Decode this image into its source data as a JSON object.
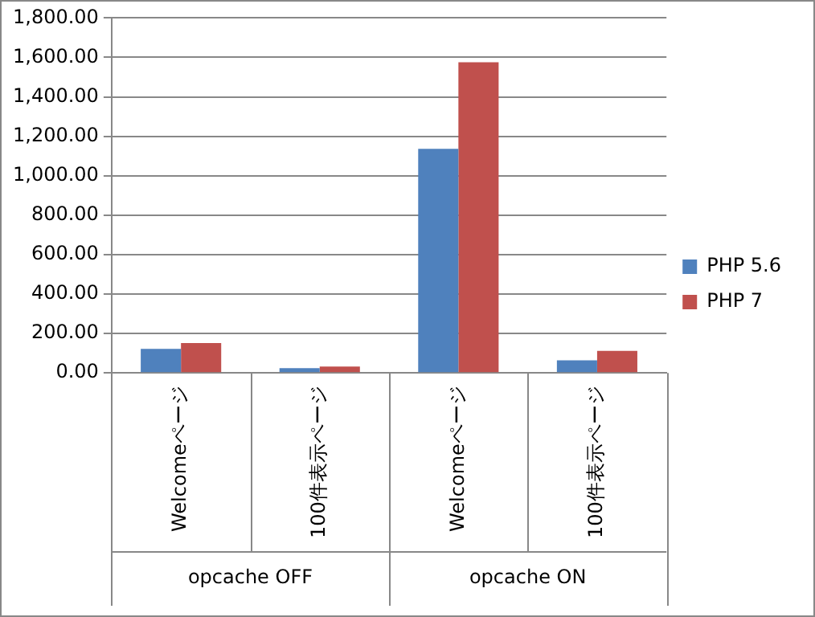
{
  "chart_data": {
    "type": "bar",
    "categories": [
      "Welcomeページ",
      "100件表示ページ",
      "Welcomeページ",
      "100件表示ページ"
    ],
    "annotations": [
      "opcache OFF",
      "opcache ON"
    ],
    "series": [
      {
        "name": "PHP 5.6",
        "color": "#4f81bd",
        "values": [
          122,
          24,
          1136,
          64
        ]
      },
      {
        "name": "PHP 7",
        "color": "#c0504d",
        "values": [
          152,
          32,
          1576,
          112
        ]
      }
    ],
    "ylim": [
      0,
      1800
    ],
    "yticks": [
      {
        "value": 0,
        "label": "0.00"
      },
      {
        "value": 200,
        "label": "200.00"
      },
      {
        "value": 400,
        "label": "400.00"
      },
      {
        "value": 600,
        "label": "600.00"
      },
      {
        "value": 800,
        "label": "800.00"
      },
      {
        "value": 1000,
        "label": "1,000.00"
      },
      {
        "value": 1200,
        "label": "1,200.00"
      },
      {
        "value": 1400,
        "label": "1,400.00"
      },
      {
        "value": 1600,
        "label": "1,600.00"
      },
      {
        "value": 1800,
        "label": "1,800.00"
      }
    ],
    "grid": "y",
    "legend": "right"
  }
}
